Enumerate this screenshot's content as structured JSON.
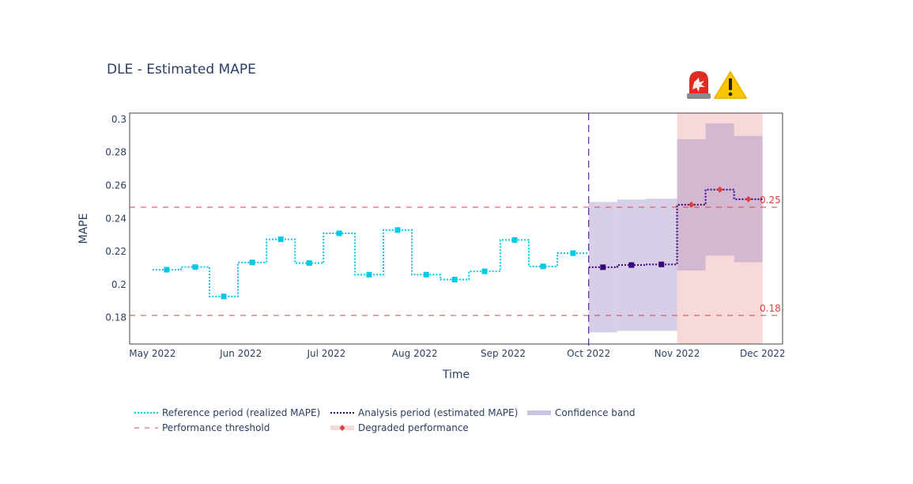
{
  "chart_data": {
    "type": "line",
    "title": "DLE - Estimated MAPE",
    "xlabel": "Time",
    "ylabel": "MAPE",
    "xlim": [
      "2022-04-23",
      "2022-12-08"
    ],
    "ylim": [
      0.164,
      0.3038
    ],
    "x_ticks": [
      {
        "date": "2022-05-01",
        "label": "May 2022"
      },
      {
        "date": "2022-06-01",
        "label": "Jun 2022"
      },
      {
        "date": "2022-07-01",
        "label": "Jul 2022"
      },
      {
        "date": "2022-08-01",
        "label": "Aug 2022"
      },
      {
        "date": "2022-09-01",
        "label": "Sep 2022"
      },
      {
        "date": "2022-10-01",
        "label": "Oct 2022"
      },
      {
        "date": "2022-11-01",
        "label": "Nov 2022"
      },
      {
        "date": "2022-12-01",
        "label": "Dec 2022"
      }
    ],
    "y_ticks": [
      {
        "value": 0.18,
        "label": "0.18"
      },
      {
        "value": 0.2,
        "label": "0.2"
      },
      {
        "value": 0.22,
        "label": "0.22"
      },
      {
        "value": 0.24,
        "label": "0.24"
      },
      {
        "value": 0.26,
        "label": "0.26"
      },
      {
        "value": 0.28,
        "label": "0.28"
      },
      {
        "value": 0.3,
        "label": "0.3"
      }
    ],
    "reference": {
      "name": "Reference period (realized MAPE)",
      "color": "#00c8e5",
      "starts": [
        "2022-05-01",
        "2022-05-11",
        "2022-05-21",
        "2022-05-31",
        "2022-06-10",
        "2022-06-20",
        "2022-06-30",
        "2022-07-11",
        "2022-07-21",
        "2022-07-31",
        "2022-08-10",
        "2022-08-20",
        "2022-08-31",
        "2022-09-10",
        "2022-09-20"
      ],
      "end": "2022-10-01",
      "values": [
        0.209,
        0.2106,
        0.1928,
        0.2134,
        0.2274,
        0.213,
        0.231,
        0.206,
        0.233,
        0.206,
        0.203,
        0.208,
        0.227,
        0.211,
        0.219
      ]
    },
    "analysis": {
      "name": "Analysis period (estimated MAPE)",
      "color": "#3b0280",
      "starts": [
        "2022-10-01",
        "2022-10-11",
        "2022-10-21",
        "2022-11-01",
        "2022-11-11",
        "2022-11-21"
      ],
      "end": "2022-12-01",
      "values": [
        0.2105,
        0.2118,
        0.2122,
        0.2483,
        0.2575,
        0.2517
      ],
      "lower": [
        0.171,
        0.172,
        0.172,
        0.2085,
        0.2175,
        0.2135
      ],
      "upper": [
        0.25,
        0.2515,
        0.252,
        0.288,
        0.2975,
        0.29
      ],
      "degraded": [
        false,
        false,
        false,
        true,
        true,
        true
      ]
    },
    "thresholds": [
      {
        "value": 0.2468,
        "label": "0.25"
      },
      {
        "value": 0.1813,
        "label": "0.18"
      }
    ],
    "threshold_color": "#dd4040",
    "band_color": "#9c87c5",
    "degraded_color": "#dd4040",
    "legend_position": "bottom",
    "legend": [
      "Reference period (realized MAPE)",
      "Analysis period (estimated MAPE)",
      "Confidence band",
      "Performance threshold",
      "Degraded performance"
    ],
    "alert_icons": [
      "siren-icon",
      "warning-icon"
    ]
  }
}
